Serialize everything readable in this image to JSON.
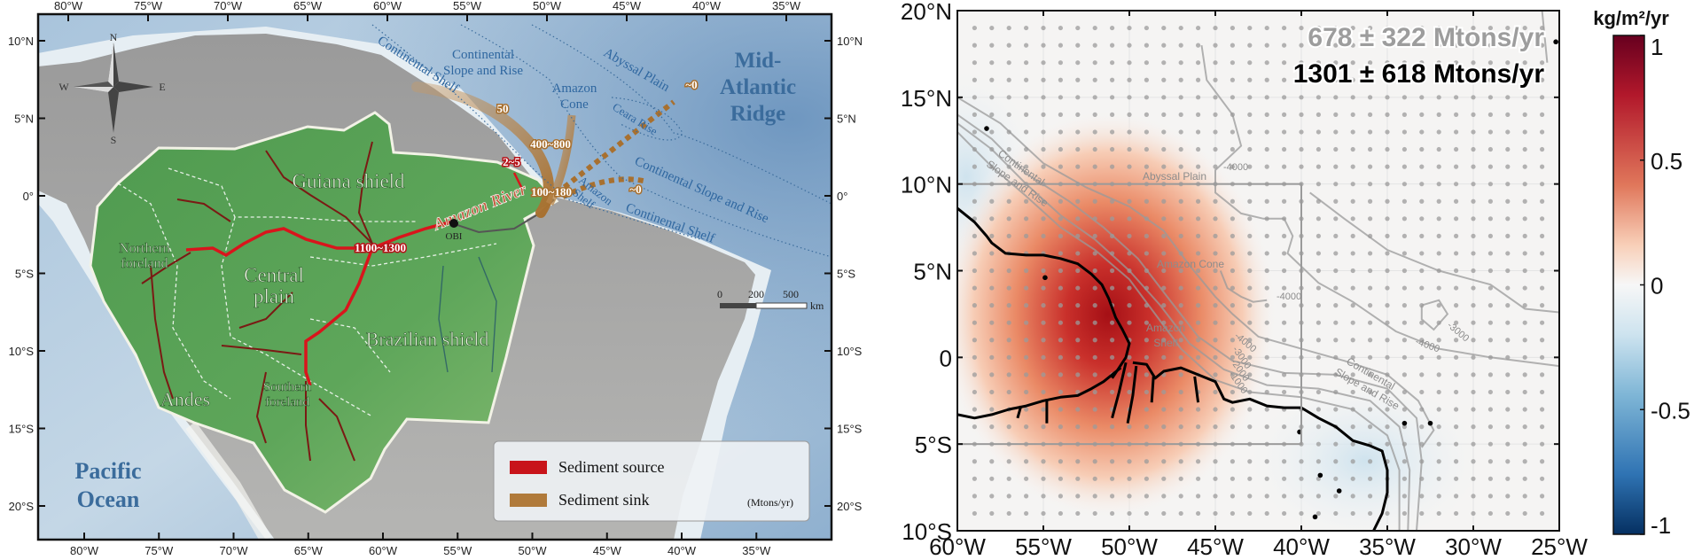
{
  "left_map": {
    "top_lon_labels": [
      "80°W",
      "75°W",
      "70°W",
      "65°W",
      "60°W",
      "55°W",
      "50°W",
      "45°W",
      "40°W",
      "35°W"
    ],
    "bottom_lon_labels": [
      "80°W",
      "75°W",
      "70°W",
      "65°W",
      "60°W",
      "55°W",
      "50°W",
      "45°W",
      "40°W",
      "35°W"
    ],
    "lat_labels": [
      "10°N",
      "5°N",
      "0°",
      "5°S",
      "10°S",
      "15°S",
      "20°S"
    ],
    "compass": {
      "n": "N",
      "s": "S",
      "w": "W",
      "e": "E"
    },
    "regions": {
      "guiana": "Guiana shield",
      "northern": [
        "Northern",
        "foreland"
      ],
      "central": [
        "Central",
        "plain"
      ],
      "brazilian": "Brazilian shield",
      "southern": [
        "Southern",
        "foreland"
      ],
      "andes": "Andes",
      "pacific": [
        "Pacific",
        "Ocean"
      ],
      "ridge": [
        "Mid-",
        "Atlantic",
        "Ridge"
      ]
    },
    "marine_labels": {
      "shelf_nw": "Continental Shelf",
      "slope_nw": [
        "Continental",
        "Slope and Rise"
      ],
      "cone": [
        "Amazon",
        "Cone"
      ],
      "abyssal": "Abyssal Plain",
      "ceara": "Ceara Rise",
      "amazon_shelf": [
        "Amazon",
        "Shelf"
      ],
      "slope_e": "Continental Slope and Rise",
      "shelf_e": "Continental Shelf"
    },
    "river_label": "Amazon River",
    "station": "OBI",
    "fluxes": {
      "source_main": "1100~1300",
      "source_small": "2~5",
      "sink_50": "50",
      "sink_400": "400~800",
      "sink_100": "100~180",
      "zero_1": "~0",
      "zero_2": "~0"
    },
    "scale_bar": {
      "ticks": [
        "0",
        "200",
        "500"
      ],
      "unit": "km"
    },
    "legend": {
      "source": "Sediment source",
      "sink": "Sediment sink",
      "unit": "(Mtons/yr)",
      "source_color": "#c8141a",
      "sink_color": "#b07a3a"
    }
  },
  "right_map": {
    "lat_labels": [
      "20°N",
      "15°N",
      "10°N",
      "5°N",
      "0",
      "5°S",
      "10°S"
    ],
    "lon_labels": [
      "60°W",
      "55°W",
      "50°W",
      "45°W",
      "40°W",
      "35°W",
      "30°W",
      "25°W"
    ],
    "flux_gray": "678 ± 322 Mtons/yr",
    "flux_black": "1301 ± 618 Mtons/yr",
    "labels": {
      "slope_nw": [
        "Continental",
        "Slope and Rise"
      ],
      "abyssal": "Abyssal Plain",
      "cone": "Amazon Cone",
      "shelf": [
        "Amazon",
        "Shelf"
      ],
      "slope_se": [
        "Continental",
        "Slope and Rise"
      ],
      "c4000_a": "-4000",
      "c4000_b": "-4000",
      "c4000_c": "-4000",
      "c4000_d": "-4000",
      "c3000_a": "-3000",
      "c3000_b": "-3000",
      "c2000": "-2000",
      "c1000": "-1000"
    },
    "colorbar": {
      "title": "kg/m²/yr",
      "ticks": [
        "1",
        "0.5",
        "0",
        "-0.5",
        "-1"
      ],
      "tick_values": [
        1,
        0.5,
        0,
        -0.5,
        -1
      ],
      "range": [
        -1,
        1
      ]
    },
    "extent": {
      "lon": [
        -60,
        -25
      ],
      "lat": [
        -10,
        20
      ]
    },
    "box": {
      "lon": [
        -60,
        -40
      ],
      "lat": [
        -5,
        10
      ]
    }
  }
}
